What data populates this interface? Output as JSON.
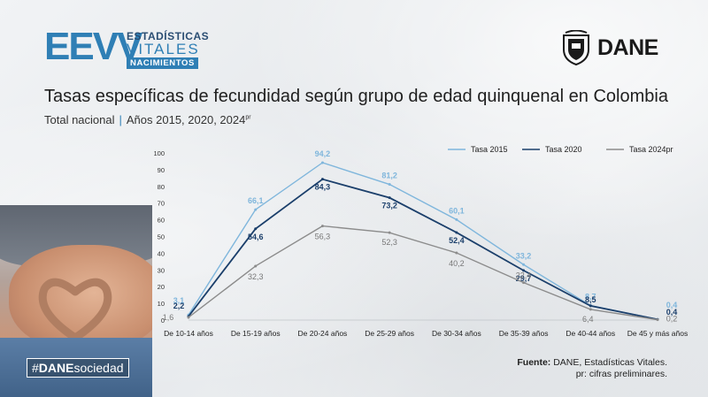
{
  "header": {
    "logo": {
      "big": "EEVV",
      "line1": "ESTADÍSTICAS",
      "line2": "VITALES",
      "line3": "NACIMIENTOS"
    },
    "brand": "DANE"
  },
  "title": "Tasas específicas de fecundidad según grupo de edad quinquenal en Colombia",
  "subtitle": {
    "part1": "Total nacional",
    "separator": "|",
    "part2": "Años 2015, 2020, 2024",
    "sup": "pr"
  },
  "hashtag": {
    "symbol": "#",
    "bold": "DANE",
    "rest": "sociedad"
  },
  "source": {
    "label": "Fuente:",
    "text": "DANE, Estadísticas Vitales.",
    "note": "pr: cifras preliminares."
  },
  "chart_data": {
    "type": "line",
    "categories": [
      "De 10-14 años",
      "De 15-19 años",
      "De 20-24 años",
      "De 25-29 años",
      "De 30-34 años",
      "De 35-39 años",
      "De 40-44 años",
      "De 45 y más años"
    ],
    "ylim": [
      0,
      100
    ],
    "yticks": [
      0,
      10,
      20,
      30,
      40,
      50,
      60,
      70,
      80,
      90,
      100
    ],
    "legend_position": "top-right",
    "grid": false,
    "series": [
      {
        "name": "Tasa 2015",
        "color": "#7fb6dc",
        "values": [
          3.1,
          66.1,
          94.2,
          81.2,
          60.1,
          33.2,
          8.7,
          0.4
        ],
        "labels": [
          "3,1",
          "66,1",
          "94,2",
          "81,2",
          "60,1",
          "33,2",
          "8,7",
          "0,4"
        ]
      },
      {
        "name": "Tasa 2020",
        "color": "#1b3f6b",
        "values": [
          2.2,
          54.6,
          84.3,
          73.2,
          52.4,
          29.7,
          8.5,
          0.4
        ],
        "labels": [
          "2,2",
          "54,6",
          "84,3",
          "73,2",
          "52,4",
          "29,7",
          "8,5",
          "0,4"
        ]
      },
      {
        "name": "Tasa 2024pr",
        "color": "#8c8c8c",
        "values": [
          1.6,
          32.3,
          56.3,
          52.3,
          40.2,
          22.4,
          6.4,
          0.2
        ],
        "labels": [
          "1,6",
          "32,3",
          "56,3",
          "52,3",
          "40,2",
          "22,4",
          "6,4",
          "0,2"
        ]
      }
    ]
  }
}
